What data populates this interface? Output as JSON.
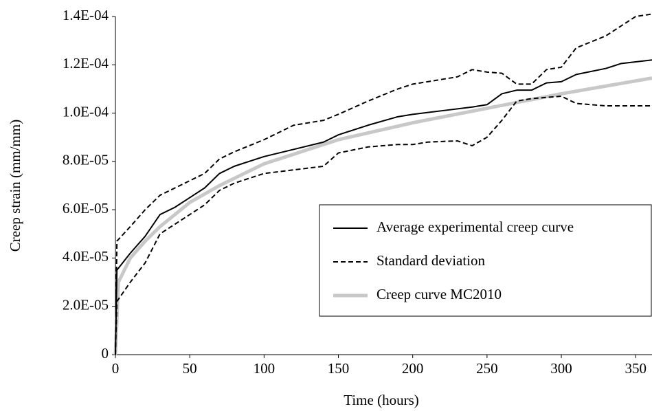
{
  "chart_data": {
    "type": "line",
    "x_label": "Time (hours)",
    "y_label": "Creep strain (mm/mm)",
    "xlim": [
      0,
      361
    ],
    "xticks": [
      0,
      50,
      100,
      150,
      200,
      250,
      300,
      350
    ],
    "ylim": [
      0,
      0.00014
    ],
    "yticks": [
      0,
      {
        "value": 2e-05,
        "label": "2.0E-05"
      },
      {
        "value": 4e-05,
        "label": "4.0E-05"
      },
      {
        "value": 6e-05,
        "label": "6.0E-05"
      },
      {
        "value": 8e-05,
        "label": "8.0E-05"
      },
      {
        "value": 0.0001,
        "label": "1.0E-04"
      },
      {
        "value": 0.00012,
        "label": "1.2E-04"
      },
      {
        "value": 0.00014,
        "label": "1.4E-04"
      }
    ],
    "grid": false,
    "legend": "lower right",
    "series": [
      {
        "name": "Average experimental creep curve",
        "color": "#000000",
        "style": "solid",
        "x": [
          0,
          1,
          10,
          20,
          30,
          40,
          50,
          60,
          70,
          80,
          90,
          100,
          120,
          140,
          150,
          170,
          190,
          200,
          220,
          240,
          250,
          260,
          270,
          280,
          290,
          300,
          310,
          330,
          340,
          361
        ],
        "values": [
          0,
          3.5e-05,
          4.2e-05,
          4.9e-05,
          5.8e-05,
          6.1e-05,
          6.5e-05,
          6.9e-05,
          7.5e-05,
          7.8e-05,
          8e-05,
          8.2e-05,
          8.5e-05,
          8.8e-05,
          9.1e-05,
          9.5e-05,
          9.85e-05,
          9.95e-05,
          0.000101,
          0.0001025,
          0.0001035,
          0.000108,
          0.0001095,
          0.0001095,
          0.0001125,
          0.000113,
          0.000116,
          0.0001185,
          0.0001205,
          0.000122
        ]
      },
      {
        "name": "Standard deviation",
        "color": "#000000",
        "style": "dashed",
        "x": [
          0,
          1,
          10,
          20,
          30,
          40,
          50,
          60,
          70,
          80,
          100,
          120,
          140,
          150,
          170,
          190,
          200,
          230,
          240,
          250,
          260,
          270,
          280,
          290,
          300,
          310,
          330,
          350,
          361
        ],
        "values": [
          0,
          4.7e-05,
          5.3e-05,
          6e-05,
          6.6e-05,
          6.9e-05,
          7.2e-05,
          7.5e-05,
          8.1e-05,
          8.4e-05,
          8.9e-05,
          9.5e-05,
          9.7e-05,
          9.95e-05,
          0.000105,
          0.00011,
          0.000112,
          0.000115,
          0.000118,
          0.000117,
          0.0001165,
          0.000112,
          0.000112,
          0.000118,
          0.000119,
          0.000127,
          0.000132,
          0.00014,
          0.000141
        ]
      },
      {
        "color": "#000000",
        "style": "dashed",
        "x": [
          0,
          1,
          10,
          20,
          30,
          40,
          50,
          60,
          70,
          80,
          100,
          120,
          140,
          150,
          170,
          190,
          200,
          210,
          230,
          240,
          250,
          260,
          270,
          280,
          300,
          310,
          330,
          361
        ],
        "values": [
          0,
          2.2e-05,
          3e-05,
          3.8e-05,
          5e-05,
          5.4e-05,
          5.8e-05,
          6.2e-05,
          6.8e-05,
          7.1e-05,
          7.5e-05,
          7.65e-05,
          7.8e-05,
          8.35e-05,
          8.6e-05,
          8.7e-05,
          8.7e-05,
          8.8e-05,
          8.85e-05,
          8.65e-05,
          9e-05,
          9.7e-05,
          0.000105,
          0.000106,
          0.000107,
          0.000104,
          0.000103,
          0.000103
        ]
      },
      {
        "name": "Creep curve MC2010",
        "color": "#c8c8c8",
        "style": "thick",
        "x": [
          0,
          2,
          10,
          20,
          30,
          50,
          70,
          100,
          150,
          200,
          250,
          300,
          361
        ],
        "values": [
          0,
          3e-05,
          4e-05,
          4.7e-05,
          5.3e-05,
          6.3e-05,
          7e-05,
          7.9e-05,
          8.9e-05,
          9.6e-05,
          0.000102,
          0.000108,
          0.0001145
        ]
      }
    ]
  }
}
